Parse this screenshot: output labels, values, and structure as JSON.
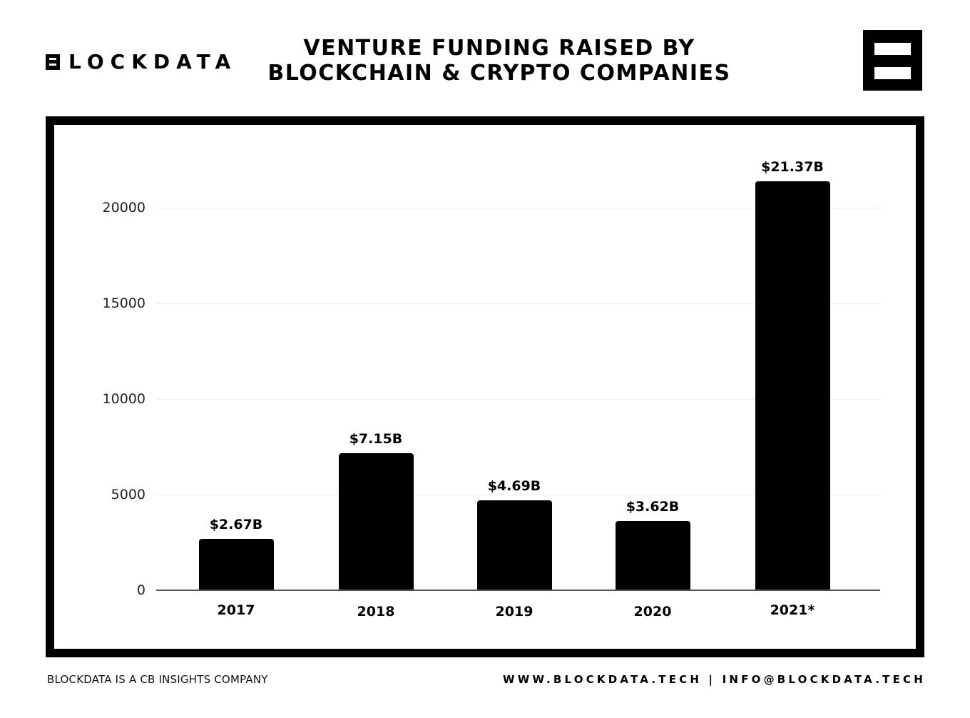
{
  "header": {
    "logo_text": "LOCKDATA",
    "logo_full": "BLOCKDATA",
    "title_line1": "VENTURE FUNDING RAISED BY",
    "title_line2": "BLOCKCHAIN & CRYPTO COMPANIES",
    "brand_icon": "blockdata-mark-icon"
  },
  "footer": {
    "left_text": "BLOCKDATA IS A CB INSIGHTS COMPANY",
    "right_text": "WWW.BLOCKDATA.TECH | INFO@BLOCKDATA.TECH"
  },
  "colors": {
    "bar": "#000000",
    "frame": "#000000",
    "gridline": "#ececec",
    "axis": "#555555",
    "background": "#ffffff"
  },
  "chart_data": {
    "type": "bar",
    "title": "VENTURE FUNDING RAISED BY BLOCKCHAIN & CRYPTO COMPANIES",
    "xlabel": "",
    "ylabel": "",
    "categories": [
      "2017",
      "2018",
      "2019",
      "2020",
      "2021*"
    ],
    "values": [
      2670,
      7150,
      4690,
      3620,
      21370
    ],
    "value_labels": [
      "$2.67B",
      "$7.15B",
      "$4.69B",
      "$3.62B",
      "$21.37B"
    ],
    "units": "USD millions",
    "yticks": [
      0,
      5000,
      10000,
      15000,
      20000
    ],
    "ytick_labels": [
      "0",
      "5000",
      "10000",
      "15000",
      "20000"
    ],
    "ylim": [
      0,
      21370
    ],
    "grid": true,
    "legend": "none"
  }
}
